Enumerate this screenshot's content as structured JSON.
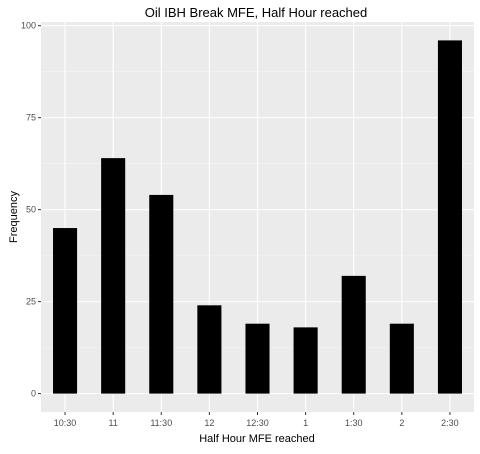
{
  "chart_data": {
    "type": "bar",
    "title": "Oil IBH Break MFE, Half Hour reached",
    "xlabel": "Half Hour MFE reached",
    "ylabel": "Frequency",
    "categories": [
      "10:30",
      "11",
      "11:30",
      "12",
      "12:30",
      "1",
      "1:30",
      "2",
      "2:30"
    ],
    "values": [
      45,
      64,
      54,
      24,
      19,
      18,
      32,
      19,
      96
    ],
    "ylim": [
      -5,
      101
    ],
    "yticks": [
      0,
      25,
      50,
      75,
      100
    ],
    "grid": true,
    "legend": "none",
    "colors": {
      "bar": "#000000",
      "panel": "#ebebeb",
      "grid_major": "#ffffff",
      "grid_minor": "#f5f5f5",
      "tick_text": "#4d4d4d",
      "tick_mark": "#333333"
    }
  }
}
